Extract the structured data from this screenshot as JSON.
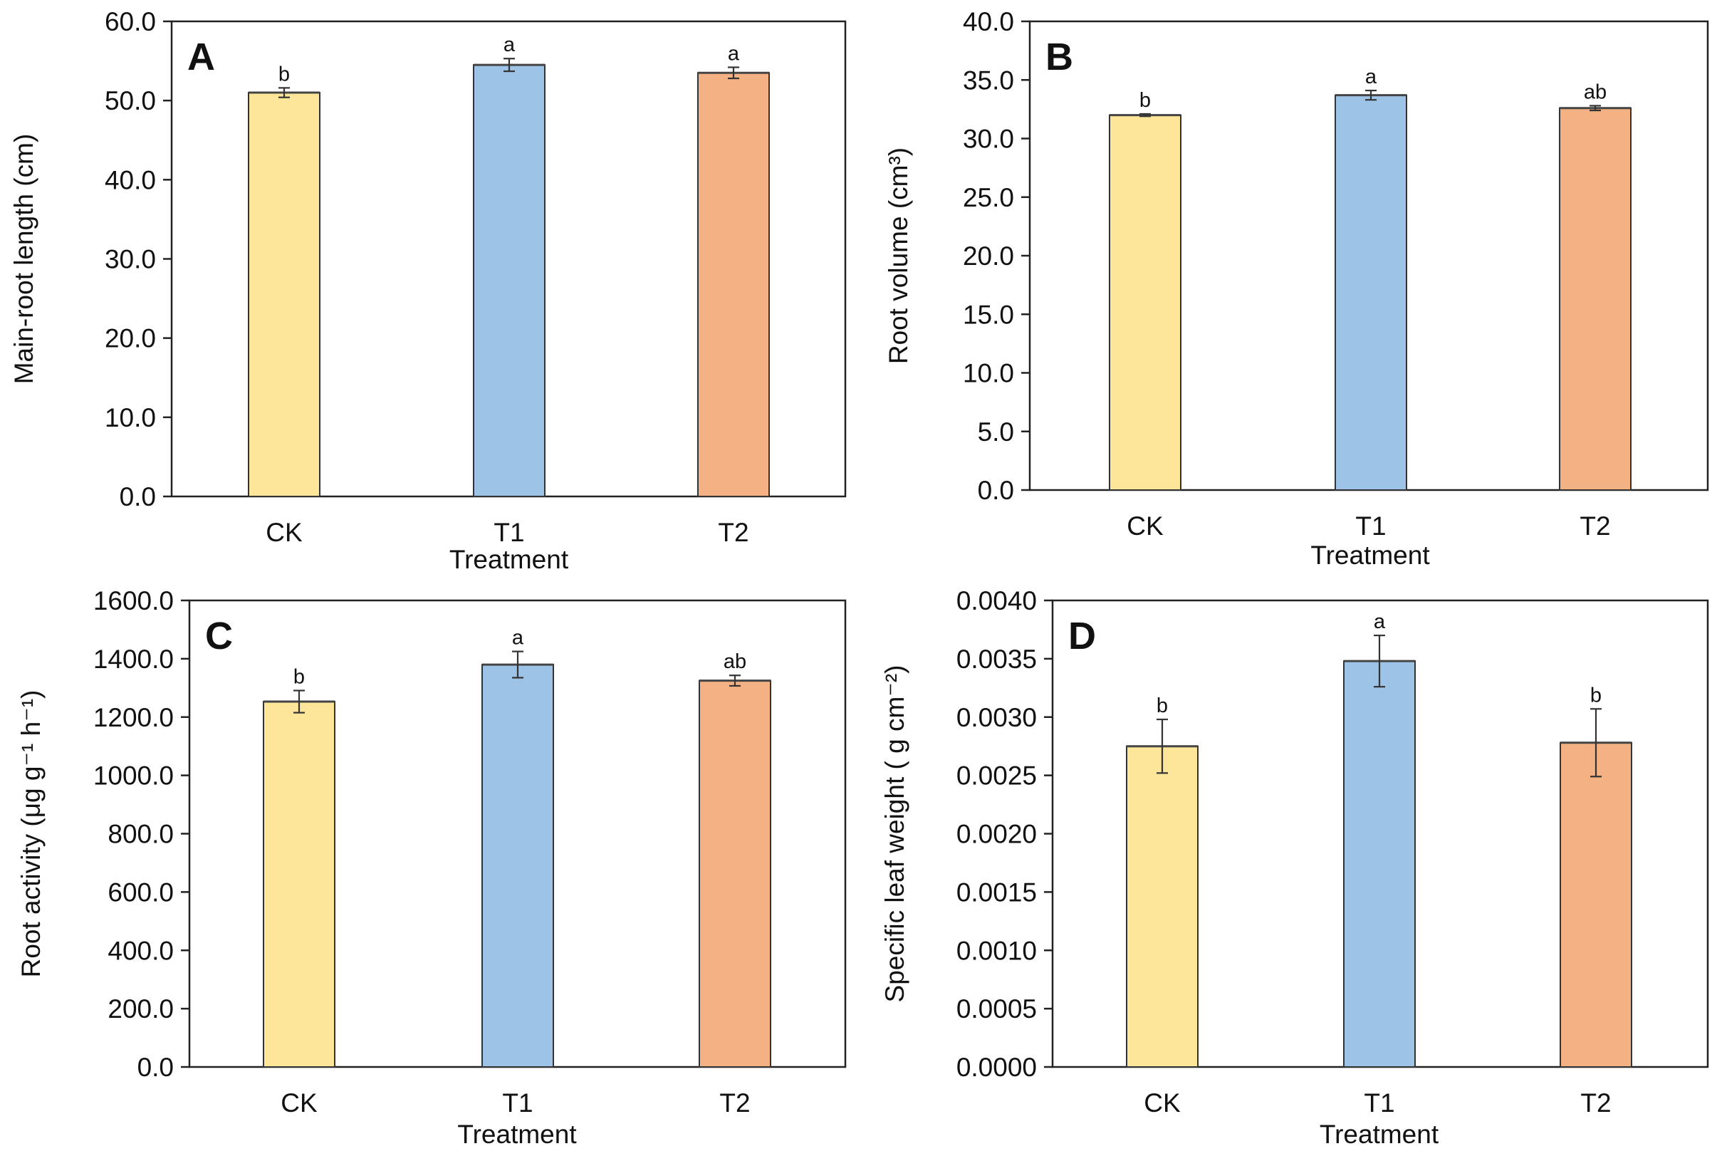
{
  "chart_data": [
    {
      "type": "bar",
      "panel": "A",
      "categories": [
        "CK",
        "T1",
        "T2"
      ],
      "values": [
        51.0,
        54.5,
        53.5
      ],
      "errors": [
        0.6,
        0.8,
        0.7
      ],
      "significance": [
        "b",
        "a",
        "a"
      ],
      "colors": [
        "#fde59a",
        "#9dc3e6",
        "#f4b183"
      ],
      "xlabel": "Treatment",
      "ylabel": "Main-root length (cm)",
      "ylim": [
        0,
        60
      ],
      "yticks": [
        "0.0",
        "10.0",
        "20.0",
        "30.0",
        "40.0",
        "50.0",
        "60.0"
      ]
    },
    {
      "type": "bar",
      "panel": "B",
      "categories": [
        "CK",
        "T1",
        "T2"
      ],
      "values": [
        32.0,
        33.7,
        32.6
      ],
      "errors": [
        0.1,
        0.4,
        0.2
      ],
      "significance": [
        "b",
        "a",
        "ab"
      ],
      "colors": [
        "#fde59a",
        "#9dc3e6",
        "#f4b183"
      ],
      "xlabel": "Treatment",
      "ylabel": "Root volume (cm³)",
      "ylim": [
        0,
        40
      ],
      "yticks": [
        "0.0",
        "5.0",
        "10.0",
        "15.0",
        "20.0",
        "25.0",
        "30.0",
        "35.0",
        "40.0"
      ]
    },
    {
      "type": "bar",
      "panel": "C",
      "categories": [
        "CK",
        "T1",
        "T2"
      ],
      "values": [
        1253,
        1380,
        1325
      ],
      "errors": [
        38,
        45,
        18
      ],
      "significance": [
        "b",
        "a",
        "ab"
      ],
      "colors": [
        "#fde59a",
        "#9dc3e6",
        "#f4b183"
      ],
      "xlabel": "Treatment",
      "ylabel": "Root activity (μg g⁻¹ h⁻¹)",
      "ylim": [
        0,
        1600
      ],
      "yticks": [
        "0.0",
        "200.0",
        "400.0",
        "600.0",
        "800.0",
        "1000.0",
        "1200.0",
        "1400.0",
        "1600.0"
      ]
    },
    {
      "type": "bar",
      "panel": "D",
      "categories": [
        "CK",
        "T1",
        "T2"
      ],
      "values": [
        0.00275,
        0.00348,
        0.00278
      ],
      "errors": [
        0.00023,
        0.00022,
        0.00029
      ],
      "significance": [
        "b",
        "a",
        "b"
      ],
      "colors": [
        "#fde59a",
        "#9dc3e6",
        "#f4b183"
      ],
      "xlabel": "Treatment",
      "ylabel": "Specific leaf weight ( g cm⁻²)",
      "ylim": [
        0,
        0.004
      ],
      "yticks": [
        "0.0000",
        "0.0005",
        "0.0010",
        "0.0015",
        "0.0020",
        "0.0025",
        "0.0030",
        "0.0035",
        "0.0040"
      ]
    }
  ]
}
